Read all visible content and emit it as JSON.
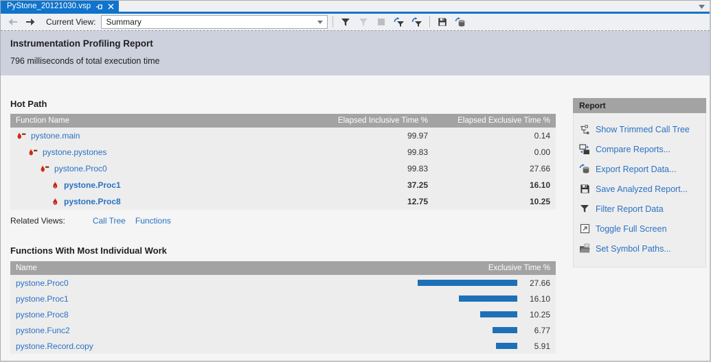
{
  "tab": {
    "title": "PyStone_20121030.vsp"
  },
  "toolbar": {
    "current_view_label": "Current View:",
    "view_value": "Summary",
    "icons": [
      "back-arrow-icon",
      "forward-arrow-icon",
      "filter-icon",
      "filter-disabled-icon",
      "stop-icon",
      "reapply-filter-icon",
      "reapply-filter-all-icon",
      "save-icon",
      "export-data-icon"
    ]
  },
  "banner": {
    "title": "Instrumentation Profiling Report",
    "subtitle": "796 milliseconds of total execution time"
  },
  "hot_path": {
    "title": "Hot Path",
    "columns": [
      "Function Name",
      "Elapsed Inclusive Time %",
      "Elapsed Exclusive Time %"
    ],
    "rows": [
      {
        "name": "pystone.main",
        "inclusive": "99.97",
        "exclusive": "0.14",
        "indent": 0,
        "bold": false,
        "icon": "flame-path-icon"
      },
      {
        "name": "pystone.pystones",
        "inclusive": "99.83",
        "exclusive": "0.00",
        "indent": 1,
        "bold": false,
        "icon": "flame-path-icon"
      },
      {
        "name": "pystone.Proc0",
        "inclusive": "99.83",
        "exclusive": "27.66",
        "indent": 2,
        "bold": false,
        "icon": "flame-path-icon"
      },
      {
        "name": "pystone.Proc1",
        "inclusive": "37.25",
        "exclusive": "16.10",
        "indent": 3,
        "bold": true,
        "icon": "flame-icon"
      },
      {
        "name": "pystone.Proc8",
        "inclusive": "12.75",
        "exclusive": "10.25",
        "indent": 3,
        "bold": true,
        "icon": "flame-icon"
      }
    ],
    "related_views_label": "Related Views:",
    "related_links": [
      "Call Tree",
      "Functions"
    ]
  },
  "functions_work": {
    "title": "Functions With Most Individual Work",
    "columns": [
      "Name",
      "Exclusive Time %"
    ],
    "rows": [
      {
        "name": "pystone.Proc0",
        "value": "27.66"
      },
      {
        "name": "pystone.Proc1",
        "value": "16.10"
      },
      {
        "name": "pystone.Proc8",
        "value": "10.25"
      },
      {
        "name": "pystone.Func2",
        "value": "6.77"
      },
      {
        "name": "pystone.Record.copy",
        "value": "5.91"
      }
    ]
  },
  "report_panel": {
    "title": "Report",
    "items": [
      {
        "label": "Show Trimmed Call Tree",
        "icon": "call-tree-icon"
      },
      {
        "label": "Compare Reports...",
        "icon": "compare-icon"
      },
      {
        "label": "Export Report Data...",
        "icon": "export-data-icon"
      },
      {
        "label": "Save Analyzed Report...",
        "icon": "save-icon"
      },
      {
        "label": "Filter Report Data",
        "icon": "filter-icon"
      },
      {
        "label": "Toggle Full Screen",
        "icon": "fullscreen-icon"
      },
      {
        "label": "Set Symbol Paths...",
        "icon": "symbol-paths-icon"
      }
    ]
  },
  "colors": {
    "accent_blue": "#0f74cc",
    "link_blue": "#2a71c0",
    "bar_blue": "#1d70b8",
    "flame_red": "#cc2d16",
    "header_gray": "#a3a3a3",
    "banner_bg": "#cdd1dd"
  }
}
